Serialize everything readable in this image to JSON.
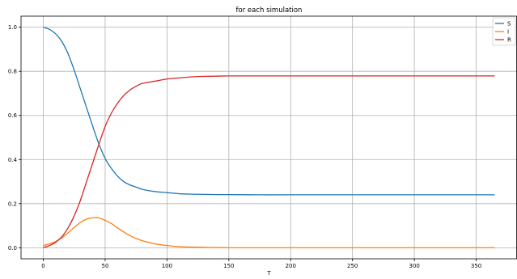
{
  "chart_data": {
    "type": "line",
    "title": "for each simulation",
    "xlabel": "T",
    "ylabel": "",
    "xlim": [
      -18,
      383
    ],
    "ylim": [
      -0.05,
      1.05
    ],
    "x_ticks": [
      0,
      50,
      100,
      150,
      200,
      250,
      300,
      350
    ],
    "y_ticks": [
      0.0,
      0.2,
      0.4,
      0.6,
      0.8,
      1.0
    ],
    "x_tick_labels": [
      "0",
      "50",
      "100",
      "150",
      "200",
      "250",
      "300",
      "350"
    ],
    "y_tick_labels": [
      "0.0",
      "0.2",
      "0.4",
      "0.6",
      "0.8",
      "1.0"
    ],
    "grid": true,
    "legend_position": "top-right",
    "x": [
      0,
      5,
      10,
      15,
      20,
      25,
      30,
      35,
      40,
      45,
      50,
      55,
      60,
      65,
      70,
      75,
      80,
      90,
      100,
      110,
      120,
      130,
      140,
      150,
      175,
      200,
      250,
      300,
      365
    ],
    "series": [
      {
        "name": "S",
        "color": "#1f77b4",
        "values": [
          1.0,
          0.99,
          0.97,
          0.935,
          0.88,
          0.805,
          0.72,
          0.635,
          0.55,
          0.47,
          0.405,
          0.36,
          0.325,
          0.3,
          0.285,
          0.275,
          0.265,
          0.255,
          0.25,
          0.245,
          0.243,
          0.242,
          0.241,
          0.241,
          0.24,
          0.24,
          0.24,
          0.24,
          0.24
        ]
      },
      {
        "name": "I",
        "color": "#ff7f0e",
        "values": [
          0.01,
          0.018,
          0.028,
          0.045,
          0.068,
          0.092,
          0.115,
          0.13,
          0.136,
          0.135,
          0.124,
          0.11,
          0.09,
          0.072,
          0.055,
          0.042,
          0.032,
          0.018,
          0.01,
          0.005,
          0.003,
          0.002,
          0.001,
          0.0,
          0.0,
          0.0,
          0.0,
          0.0,
          0.0
        ]
      },
      {
        "name": "R",
        "color": "#d62728",
        "values": [
          0.0,
          0.01,
          0.025,
          0.05,
          0.09,
          0.145,
          0.215,
          0.3,
          0.385,
          0.47,
          0.55,
          0.61,
          0.655,
          0.69,
          0.715,
          0.732,
          0.745,
          0.755,
          0.765,
          0.77,
          0.775,
          0.777,
          0.778,
          0.779,
          0.779,
          0.779,
          0.779,
          0.779,
          0.779
        ]
      }
    ]
  }
}
